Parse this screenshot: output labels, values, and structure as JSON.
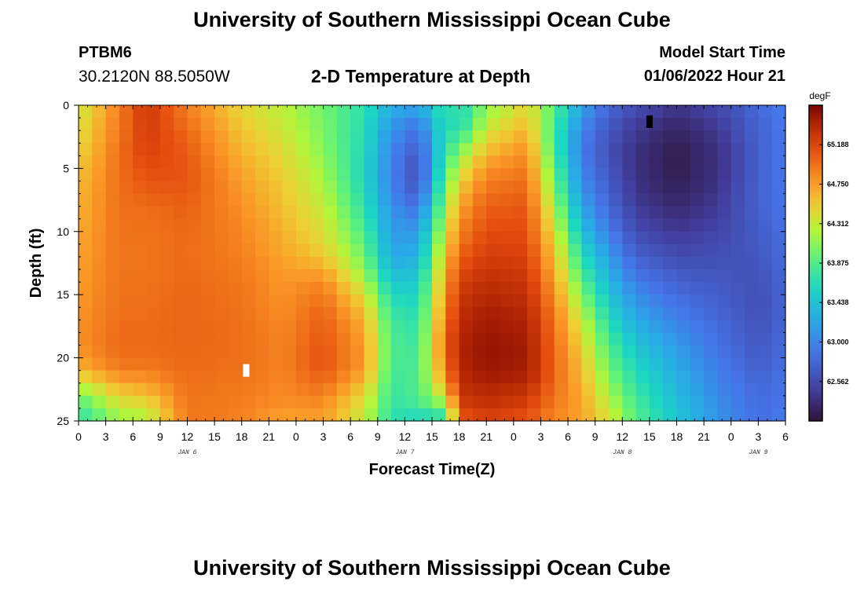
{
  "header": {
    "title": "University of Southern Mississippi Ocean Cube",
    "station_id": "PTBM6",
    "coords": "30.2120N  88.5050W",
    "plot_title": "2-D Temperature at Depth",
    "start_label": "Model Start Time",
    "start_value": "01/06/2022 Hour 21"
  },
  "footer": {
    "title": "University of Southern Mississippi Ocean Cube"
  },
  "chart_data": {
    "type": "heatmap",
    "title": "2-D Temperature at Depth",
    "xlabel": "Forecast Time(Z)",
    "ylabel": "Depth (ft)",
    "x_range_hours": [
      0,
      78
    ],
    "x_start": "2022-01-06 00Z",
    "x_tick_labels": [
      "0",
      "3",
      "6",
      "9",
      "12",
      "15",
      "18",
      "21",
      "0",
      "3",
      "6",
      "9",
      "12",
      "15",
      "18",
      "21",
      "0",
      "3",
      "6",
      "9",
      "12",
      "15",
      "18",
      "21",
      "0",
      "3",
      "6"
    ],
    "date_labels": [
      {
        "label": "JAN 6",
        "hour": 12
      },
      {
        "label": "JAN 7",
        "hour": 36
      },
      {
        "label": "JAN 8",
        "hour": 60
      },
      {
        "label": "JAN 9",
        "hour": 75
      }
    ],
    "y_range": [
      0,
      25
    ],
    "y_ticks": [
      0,
      5,
      10,
      15,
      20,
      25
    ],
    "y_inverted": true,
    "colorbar": {
      "unit": "degF",
      "min": 62.125,
      "max": 65.625,
      "tick_values": [
        65.188,
        64.75,
        64.312,
        63.875,
        63.438,
        63.0,
        62.562
      ],
      "tick_labels": [
        "65.188",
        "64.750",
        "64.312",
        "63.875",
        "63.438",
        "63.000",
        "62.562"
      ]
    },
    "hour_step": 1.5,
    "depth_step": 1,
    "depth_profiles_degF": [
      {
        "hour": 0,
        "values": [
          64.3,
          64.35,
          64.4,
          64.45,
          64.5,
          64.55,
          64.6,
          64.62,
          64.64,
          64.66,
          64.68,
          64.7,
          64.72,
          64.74,
          64.75,
          64.76,
          64.78,
          64.8,
          64.82,
          64.8,
          64.75,
          64.6,
          64.3,
          64.0,
          63.8,
          63.7
        ]
      },
      {
        "hour": 4.5,
        "values": [
          64.9,
          64.92,
          64.94,
          64.96,
          64.98,
          64.98,
          64.98,
          64.98,
          64.98,
          64.97,
          64.96,
          64.95,
          64.95,
          64.95,
          64.96,
          64.97,
          64.98,
          64.99,
          65.0,
          65.0,
          64.98,
          64.9,
          64.7,
          64.5,
          64.3,
          64.1
        ]
      },
      {
        "hour": 7.5,
        "values": [
          65.3,
          65.28,
          65.26,
          65.24,
          65.2,
          65.15,
          65.1,
          65.05,
          65.0,
          64.98,
          64.96,
          64.95,
          64.95,
          64.95,
          64.96,
          64.97,
          64.98,
          64.99,
          65.0,
          65.0,
          64.98,
          64.9,
          64.75,
          64.55,
          64.35,
          64.2
        ]
      },
      {
        "hour": 12,
        "values": [
          64.9,
          64.95,
          65.0,
          65.05,
          65.08,
          65.1,
          65.1,
          65.08,
          65.05,
          65.03,
          65.01,
          65.0,
          65.0,
          65.0,
          65.01,
          65.02,
          65.03,
          65.03,
          65.03,
          65.02,
          65.01,
          65.0,
          64.98,
          64.96,
          64.95,
          64.94
        ]
      },
      {
        "hour": 18,
        "values": [
          64.45,
          64.5,
          64.55,
          64.6,
          64.65,
          64.7,
          64.75,
          64.78,
          64.81,
          64.84,
          64.86,
          64.88,
          64.9,
          64.92,
          64.94,
          64.95,
          64.96,
          64.97,
          64.98,
          64.98,
          64.98,
          64.96,
          64.94,
          64.92,
          64.9,
          64.88
        ]
      },
      {
        "hour": 22.5,
        "values": [
          64.25,
          64.3,
          64.35,
          64.4,
          64.45,
          64.48,
          64.52,
          64.55,
          64.58,
          64.62,
          64.65,
          64.68,
          64.72,
          64.75,
          64.78,
          64.8,
          64.82,
          64.84,
          64.86,
          64.88,
          64.88,
          64.88,
          64.86,
          64.84,
          64.8,
          64.7
        ]
      },
      {
        "hour": 27,
        "values": [
          64.0,
          64.02,
          64.04,
          64.06,
          64.1,
          64.15,
          64.2,
          64.25,
          64.3,
          64.35,
          64.4,
          64.45,
          64.55,
          64.7,
          64.85,
          64.95,
          65.0,
          65.05,
          65.08,
          65.1,
          65.12,
          65.1,
          65.0,
          64.9,
          64.8,
          64.75
        ]
      },
      {
        "hour": 31.5,
        "values": [
          63.7,
          63.68,
          63.66,
          63.64,
          63.62,
          63.6,
          63.6,
          63.65,
          63.7,
          63.78,
          63.85,
          63.92,
          64.0,
          64.1,
          64.25,
          64.4,
          64.55,
          64.65,
          64.72,
          64.75,
          64.78,
          64.75,
          64.6,
          64.45,
          64.35,
          64.3
        ]
      },
      {
        "hour": 34.5,
        "values": [
          63.3,
          63.2,
          63.1,
          63.05,
          63.0,
          62.98,
          62.98,
          63.02,
          63.08,
          63.12,
          63.15,
          63.18,
          63.25,
          63.35,
          63.48,
          63.6,
          63.7,
          63.78,
          63.82,
          63.84,
          63.84,
          63.8,
          63.78,
          63.75,
          63.72,
          63.7
        ]
      },
      {
        "hour": 37.5,
        "values": [
          63.25,
          63.0,
          62.85,
          62.75,
          62.65,
          62.6,
          62.62,
          62.7,
          62.85,
          63.0,
          63.12,
          63.22,
          63.3,
          63.4,
          63.5,
          63.58,
          63.64,
          63.7,
          63.74,
          63.78,
          63.82,
          63.84,
          63.85,
          63.85,
          63.8,
          63.5
        ]
      },
      {
        "hour": 40.5,
        "values": [
          63.8,
          63.75,
          63.7,
          63.72,
          63.75,
          63.85,
          63.95,
          64.05,
          64.15,
          64.25,
          64.35,
          64.45,
          64.55,
          64.65,
          64.72,
          64.78,
          64.84,
          64.9,
          64.96,
          65.0,
          64.95,
          64.85,
          64.7,
          64.4,
          64.0,
          63.6
        ]
      },
      {
        "hour": 42,
        "values": [
          63.6,
          63.55,
          63.65,
          63.9,
          64.1,
          64.3,
          64.45,
          64.6,
          64.7,
          64.8,
          64.88,
          64.96,
          65.05,
          65.15,
          65.22,
          65.28,
          65.32,
          65.36,
          65.4,
          65.42,
          65.42,
          65.4,
          65.36,
          65.3,
          65.2,
          65.05
        ]
      },
      {
        "hour": 45,
        "values": [
          64.1,
          64.2,
          64.35,
          64.5,
          64.65,
          64.8,
          64.9,
          64.98,
          65.05,
          65.1,
          65.15,
          65.2,
          65.25,
          65.3,
          65.35,
          65.4,
          65.45,
          65.48,
          65.5,
          65.52,
          65.52,
          65.5,
          65.45,
          65.38,
          65.3,
          65.2
        ]
      },
      {
        "hour": 49.5,
        "values": [
          64.45,
          64.55,
          64.65,
          64.75,
          64.85,
          64.92,
          64.98,
          65.03,
          65.08,
          65.12,
          65.15,
          65.18,
          65.22,
          65.26,
          65.3,
          65.34,
          65.38,
          65.42,
          65.45,
          65.47,
          65.48,
          65.46,
          65.4,
          65.3,
          65.2,
          65.1
        ]
      },
      {
        "hour": 52.5,
        "values": [
          63.9,
          63.85,
          63.8,
          63.8,
          63.85,
          63.92,
          64.0,
          64.1,
          64.2,
          64.3,
          64.4,
          64.5,
          64.58,
          64.66,
          64.74,
          64.82,
          64.88,
          64.94,
          64.98,
          65.0,
          65.02,
          65.02,
          65.0,
          64.95,
          64.9,
          64.85
        ]
      },
      {
        "hour": 55.5,
        "values": [
          63.2,
          63.1,
          63.0,
          62.95,
          62.95,
          63.0,
          63.05,
          63.12,
          63.2,
          63.3,
          63.42,
          63.55,
          63.68,
          63.8,
          63.92,
          64.05,
          64.18,
          64.3,
          64.4,
          64.48,
          64.55,
          64.6,
          64.65,
          64.7,
          64.72,
          64.73
        ]
      },
      {
        "hour": 58.5,
        "values": [
          62.8,
          62.72,
          62.66,
          62.62,
          62.62,
          62.65,
          62.7,
          62.75,
          62.8,
          62.88,
          62.95,
          63.05,
          63.15,
          63.25,
          63.35,
          63.45,
          63.55,
          63.65,
          63.75,
          63.85,
          63.92,
          64.0,
          64.1,
          64.2,
          64.3,
          64.4
        ]
      },
      {
        "hour": 61.5,
        "values": [
          62.6,
          62.5,
          62.42,
          62.38,
          62.36,
          62.36,
          62.38,
          62.4,
          62.45,
          62.5,
          62.58,
          62.66,
          62.75,
          62.85,
          62.95,
          63.05,
          63.15,
          63.25,
          63.35,
          63.45,
          63.55,
          63.62,
          63.7,
          63.78,
          63.85,
          63.9
        ]
      },
      {
        "hour": 66,
        "values": [
          62.4,
          62.32,
          62.26,
          62.22,
          62.2,
          62.2,
          62.22,
          62.25,
          62.3,
          62.36,
          62.42,
          62.5,
          62.58,
          62.66,
          62.74,
          62.82,
          62.9,
          62.98,
          63.06,
          63.14,
          63.2,
          63.26,
          63.32,
          63.38,
          63.42,
          63.45
        ]
      },
      {
        "hour": 70.5,
        "values": [
          62.55,
          62.48,
          62.42,
          62.38,
          62.36,
          62.36,
          62.38,
          62.4,
          62.44,
          62.48,
          62.52,
          62.56,
          62.6,
          62.64,
          62.68,
          62.72,
          62.76,
          62.8,
          62.84,
          62.88,
          62.92,
          62.96,
          63.0,
          63.04,
          63.08,
          63.1
        ]
      },
      {
        "hour": 75,
        "values": [
          62.8,
          62.78,
          62.76,
          62.75,
          62.74,
          62.74,
          62.75,
          62.75,
          62.74,
          62.72,
          62.7,
          62.68,
          62.66,
          62.64,
          62.62,
          62.6,
          62.6,
          62.62,
          62.64,
          62.66,
          62.7,
          62.74,
          62.78,
          62.82,
          62.84,
          62.85
        ]
      },
      {
        "hour": 78,
        "values": [
          62.95,
          62.94,
          62.93,
          62.92,
          62.92,
          62.92,
          62.92,
          62.92,
          62.9,
          62.88,
          62.86,
          62.84,
          62.82,
          62.8,
          62.78,
          62.76,
          62.76,
          62.78,
          62.8,
          62.82,
          62.84,
          62.86,
          62.88,
          62.9,
          62.92,
          62.93
        ]
      }
    ],
    "min_marker": {
      "hour": 63,
      "depth": 1.3,
      "color": "#000000"
    },
    "max_marker": {
      "hour": 18.5,
      "depth": 21,
      "color": "#ffffff"
    }
  }
}
